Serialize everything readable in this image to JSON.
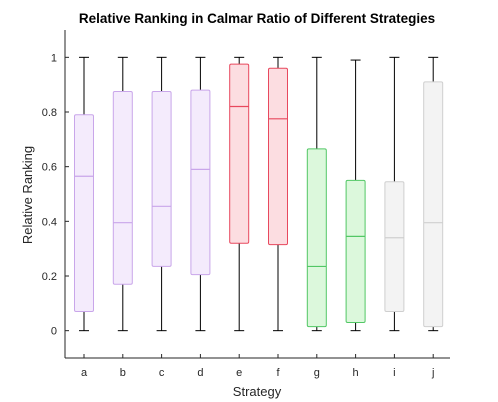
{
  "chart_data": {
    "type": "box",
    "title": "Relative Ranking in Calmar Ratio of Different Strategies",
    "xlabel": "Strategy",
    "ylabel": "Relative Ranking",
    "ylim": [
      -0.1,
      1.1
    ],
    "yticks": [
      0,
      0.2,
      0.4,
      0.6,
      0.8,
      1
    ],
    "ytick_labels": [
      "0",
      "0.2",
      "0.4",
      "0.6",
      "0.8",
      "1"
    ],
    "grid": false,
    "categories": [
      "a",
      "b",
      "c",
      "d",
      "e",
      "f",
      "g",
      "h",
      "i",
      "j"
    ],
    "boxes": [
      {
        "category": "a",
        "min": 0.0,
        "q1": 0.07,
        "median": 0.565,
        "q3": 0.79,
        "max": 1.0,
        "fill": "#f4ebfc",
        "stroke": "#c9a6ea"
      },
      {
        "category": "b",
        "min": 0.0,
        "q1": 0.17,
        "median": 0.395,
        "q3": 0.875,
        "max": 1.0,
        "fill": "#f4ebfc",
        "stroke": "#c9a6ea"
      },
      {
        "category": "c",
        "min": 0.0,
        "q1": 0.235,
        "median": 0.455,
        "q3": 0.875,
        "max": 1.0,
        "fill": "#f4ebfc",
        "stroke": "#c9a6ea"
      },
      {
        "category": "d",
        "min": 0.0,
        "q1": 0.205,
        "median": 0.59,
        "q3": 0.88,
        "max": 1.0,
        "fill": "#f4ebfc",
        "stroke": "#c9a6ea"
      },
      {
        "category": "e",
        "min": 0.0,
        "q1": 0.32,
        "median": 0.82,
        "q3": 0.975,
        "max": 1.0,
        "fill": "#fcdde1",
        "stroke": "#e8485e"
      },
      {
        "category": "f",
        "min": 0.0,
        "q1": 0.315,
        "median": 0.775,
        "q3": 0.96,
        "max": 1.0,
        "fill": "#fcdde1",
        "stroke": "#e8485e"
      },
      {
        "category": "g",
        "min": 0.0,
        "q1": 0.015,
        "median": 0.235,
        "q3": 0.665,
        "max": 1.0,
        "fill": "#dcf8dc",
        "stroke": "#52c765"
      },
      {
        "category": "h",
        "min": 0.0,
        "q1": 0.03,
        "median": 0.345,
        "q3": 0.55,
        "max": 0.99,
        "fill": "#dcf8dc",
        "stroke": "#52c765"
      },
      {
        "category": "i",
        "min": 0.0,
        "q1": 0.07,
        "median": 0.34,
        "q3": 0.545,
        "max": 1.0,
        "fill": "#f3f3f3",
        "stroke": "#cfcfcf"
      },
      {
        "category": "j",
        "min": 0.0,
        "q1": 0.015,
        "median": 0.395,
        "q3": 0.91,
        "max": 1.0,
        "fill": "#f3f3f3",
        "stroke": "#cfcfcf"
      }
    ]
  }
}
